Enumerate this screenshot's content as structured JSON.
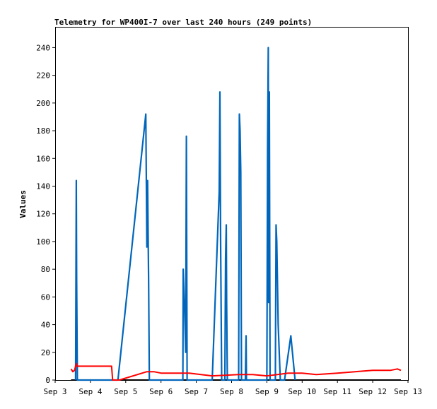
{
  "chart_data": {
    "type": "line",
    "title": "Telemetry for WP400I-7 over last 240 hours (249 points)",
    "xlabel": "",
    "ylabel": "Values",
    "x_ticks": [
      "Sep 3",
      "Sep 4",
      "Sep 5",
      "Sep 6",
      "Sep 7",
      "Sep 8",
      "Sep 9",
      "Sep 10",
      "Sep 11",
      "Sep 12",
      "Sep 13"
    ],
    "xlim": [
      3,
      13
    ],
    "ylim": [
      0,
      255
    ],
    "y_ticks": [
      0,
      20,
      40,
      60,
      80,
      100,
      120,
      140,
      160,
      180,
      200,
      220,
      240
    ],
    "grid": false,
    "legend": "none",
    "series": [
      {
        "color": "#000000",
        "points": [
          [
            3.45,
            0
          ],
          [
            12.8,
            0
          ]
        ]
      },
      {
        "color": "#0066bb",
        "points": [
          [
            3.58,
            0
          ],
          [
            3.6,
            144
          ],
          [
            3.61,
            72
          ],
          [
            3.63,
            0
          ],
          [
            4.78,
            0
          ],
          [
            5.57,
            192
          ],
          [
            5.6,
            96
          ],
          [
            5.62,
            144
          ],
          [
            5.65,
            70
          ],
          [
            5.67,
            0
          ],
          [
            6.62,
            0
          ],
          [
            6.63,
            80
          ],
          [
            6.67,
            50
          ],
          [
            6.7,
            20
          ],
          [
            6.72,
            176
          ],
          [
            6.74,
            0
          ],
          [
            7.45,
            0
          ],
          [
            7.65,
            136
          ],
          [
            7.67,
            208
          ],
          [
            7.69,
            100
          ],
          [
            7.72,
            0
          ],
          [
            7.81,
            0
          ],
          [
            7.83,
            88
          ],
          [
            7.85,
            112
          ],
          [
            7.86,
            57
          ],
          [
            7.88,
            0
          ],
          [
            8.2,
            0
          ],
          [
            8.22,
            192
          ],
          [
            8.24,
            180
          ],
          [
            8.26,
            150
          ],
          [
            8.28,
            0
          ],
          [
            8.39,
            0
          ],
          [
            8.41,
            32
          ],
          [
            8.42,
            0
          ],
          [
            9.0,
            0
          ],
          [
            9.02,
            168
          ],
          [
            9.04,
            240
          ],
          [
            9.05,
            56
          ],
          [
            9.07,
            208
          ],
          [
            9.09,
            0
          ],
          [
            9.24,
            0
          ],
          [
            9.26,
            112
          ],
          [
            9.28,
            100
          ],
          [
            9.32,
            40
          ],
          [
            9.38,
            0
          ],
          [
            9.5,
            0
          ],
          [
            9.68,
            32
          ],
          [
            9.8,
            0
          ]
        ]
      },
      {
        "color": "#ff0000",
        "points": [
          [
            3.45,
            8
          ],
          [
            3.5,
            6
          ],
          [
            3.55,
            7
          ],
          [
            3.6,
            12
          ],
          [
            3.62,
            10
          ],
          [
            4.6,
            10
          ],
          [
            4.63,
            0
          ],
          [
            4.82,
            0
          ],
          [
            5.6,
            6
          ],
          [
            5.8,
            6
          ],
          [
            6.0,
            5
          ],
          [
            6.8,
            5
          ],
          [
            7.45,
            3
          ],
          [
            8.2,
            4
          ],
          [
            8.6,
            4
          ],
          [
            9.0,
            3
          ],
          [
            9.3,
            4
          ],
          [
            9.6,
            5
          ],
          [
            10.0,
            5
          ],
          [
            10.4,
            4
          ],
          [
            11.0,
            5
          ],
          [
            11.5,
            6
          ],
          [
            12.0,
            7
          ],
          [
            12.5,
            7
          ],
          [
            12.7,
            8
          ],
          [
            12.8,
            7
          ]
        ]
      }
    ]
  }
}
